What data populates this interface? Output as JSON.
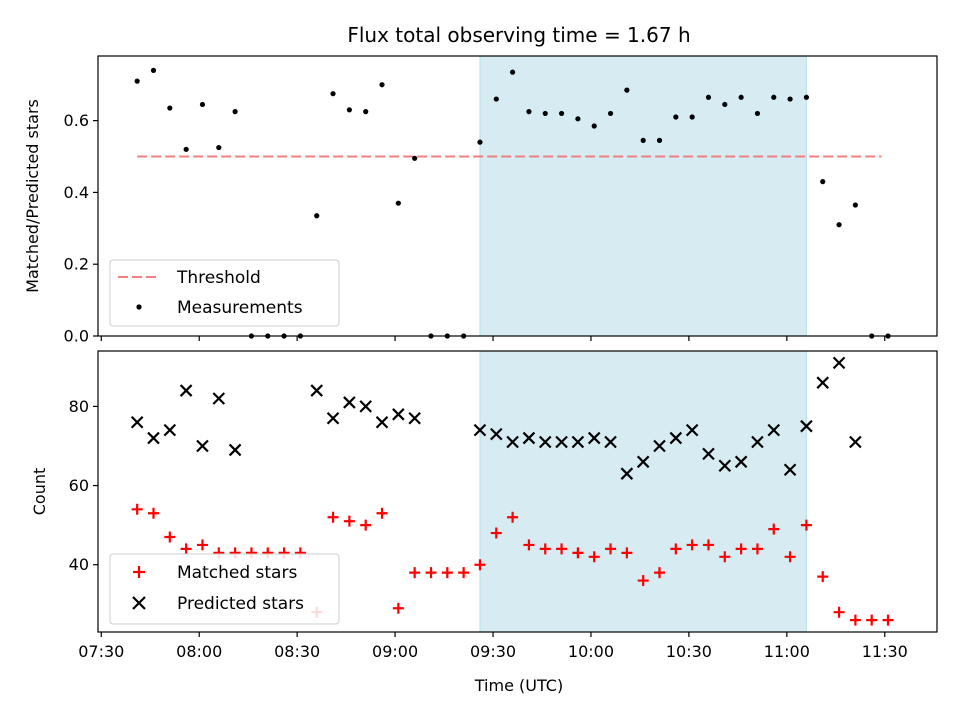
{
  "chart_data": {
    "title": "Flux total observing time = 1.67 h",
    "xlabel": "Time (UTC)",
    "x_ticks": [
      "07:30",
      "08:00",
      "08:30",
      "09:00",
      "09:30",
      "10:00",
      "10:30",
      "11:00",
      "11:30"
    ],
    "x_tick_minutes": [
      450,
      480,
      510,
      540,
      570,
      600,
      630,
      660,
      690
    ],
    "xlim": [
      "07:29",
      "11:46"
    ],
    "shaded_span": {
      "start": "09:26",
      "end": "11:06",
      "color": "#add8e6"
    },
    "panels": [
      {
        "type": "scatter",
        "ylabel": "Matched/Predicted stars",
        "ylim": [
          0,
          0.78
        ],
        "y_ticks": [
          0.0,
          0.2,
          0.4,
          0.6
        ],
        "y_tick_labels": [
          "0.0",
          "0.2",
          "0.4",
          "0.6"
        ],
        "threshold": {
          "name": "Threshold",
          "value": 0.5,
          "color": "#f08080",
          "x_start": "07:41",
          "x_end": "11:29"
        },
        "legend": {
          "position": "lower-left",
          "entries": [
            "Threshold",
            "Measurements"
          ]
        },
        "series": [
          {
            "name": "Measurements",
            "marker": "dot",
            "color": "#000000",
            "x": [
              "07:41",
              "07:46",
              "07:51",
              "07:56",
              "08:01",
              "08:06",
              "08:11",
              "08:16",
              "08:21",
              "08:26",
              "08:31",
              "08:36",
              "08:41",
              "08:46",
              "08:51",
              "08:56",
              "09:01",
              "09:06",
              "09:11",
              "09:16",
              "09:21",
              "09:26",
              "09:31",
              "09:36",
              "09:41",
              "09:46",
              "09:51",
              "09:56",
              "10:01",
              "10:06",
              "10:11",
              "10:16",
              "10:21",
              "10:26",
              "10:31",
              "10:36",
              "10:41",
              "10:46",
              "10:51",
              "10:56",
              "11:01",
              "11:06",
              "11:11",
              "11:16",
              "11:21",
              "11:26",
              "11:31"
            ],
            "y": [
              0.71,
              0.74,
              0.635,
              0.52,
              0.645,
              0.525,
              0.625,
              0.0,
              0.0,
              0.0,
              0.0,
              0.335,
              0.675,
              0.63,
              0.625,
              0.7,
              0.37,
              0.495,
              0.0,
              0.0,
              0.0,
              0.54,
              0.66,
              0.735,
              0.625,
              0.62,
              0.62,
              0.605,
              0.585,
              0.62,
              0.685,
              0.545,
              0.545,
              0.61,
              0.61,
              0.665,
              0.645,
              0.665,
              0.62,
              0.665,
              0.66,
              0.665,
              0.43,
              0.31,
              0.365,
              0.0,
              0.0
            ]
          }
        ]
      },
      {
        "type": "scatter",
        "ylabel": "Count",
        "ylim": [
          23,
          94
        ],
        "y_ticks": [
          40,
          60,
          80
        ],
        "y_tick_labels": [
          "40",
          "60",
          "80"
        ],
        "legend": {
          "position": "lower-left",
          "entries": [
            "Matched stars",
            "Predicted stars"
          ]
        },
        "series": [
          {
            "name": "Matched stars",
            "marker": "plus",
            "color": "#ff0000",
            "x": [
              "07:41",
              "07:46",
              "07:51",
              "07:56",
              "08:01",
              "08:06",
              "08:11",
              "08:16",
              "08:21",
              "08:26",
              "08:31",
              "08:36",
              "08:41",
              "08:46",
              "08:51",
              "08:56",
              "09:01",
              "09:06",
              "09:11",
              "09:16",
              "09:21",
              "09:26",
              "09:31",
              "09:36",
              "09:41",
              "09:46",
              "09:51",
              "09:56",
              "10:01",
              "10:06",
              "10:11",
              "10:16",
              "10:21",
              "10:26",
              "10:31",
              "10:36",
              "10:41",
              "10:46",
              "10:51",
              "10:56",
              "11:01",
              "11:06",
              "11:11",
              "11:16",
              "11:21",
              "11:26",
              "11:31"
            ],
            "y": [
              54,
              53,
              47,
              44,
              45,
              43,
              43,
              43,
              43,
              43,
              43,
              28,
              52,
              51,
              50,
              53,
              29,
              38,
              38,
              38,
              38,
              40,
              48,
              52,
              45,
              44,
              44,
              43,
              42,
              44,
              43,
              36,
              38,
              44,
              45,
              45,
              42,
              44,
              44,
              49,
              42,
              50,
              37,
              28,
              26,
              26,
              26
            ]
          },
          {
            "name": "Predicted stars",
            "marker": "x",
            "color": "#000000",
            "x": [
              "07:41",
              "07:46",
              "07:51",
              "07:56",
              "08:01",
              "08:06",
              "08:11",
              "08:36",
              "08:41",
              "08:46",
              "08:51",
              "08:56",
              "09:01",
              "09:06",
              "09:26",
              "09:31",
              "09:36",
              "09:41",
              "09:46",
              "09:51",
              "09:56",
              "10:01",
              "10:06",
              "10:11",
              "10:16",
              "10:21",
              "10:26",
              "10:31",
              "10:36",
              "10:41",
              "10:46",
              "10:51",
              "10:56",
              "11:01",
              "11:06",
              "11:11",
              "11:16",
              "11:21"
            ],
            "y": [
              76,
              72,
              74,
              84,
              70,
              82,
              69,
              84,
              77,
              81,
              80,
              76,
              78,
              77,
              74,
              73,
              71,
              72,
              71,
              71,
              71,
              72,
              71,
              63,
              66,
              70,
              72,
              74,
              68,
              65,
              66,
              71,
              74,
              64,
              75,
              86,
              91,
              71
            ]
          }
        ]
      }
    ]
  }
}
